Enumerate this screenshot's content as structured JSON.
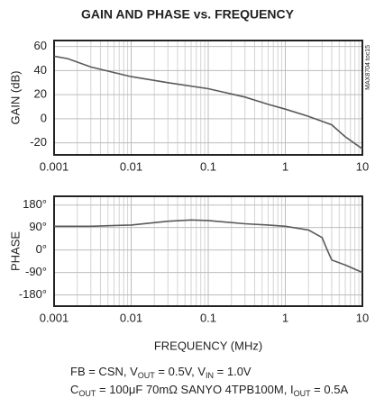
{
  "title": "GAIN AND PHASE vs. FREQUENCY",
  "side_label": "MAX8704 toc15",
  "notes": [
    [
      {
        "text": "FB = CSN, V"
      },
      {
        "sub": "OUT"
      },
      {
        "text": " = 0.5V, V"
      },
      {
        "sub": "IN"
      },
      {
        "text": " = 1.0V"
      }
    ],
    [
      {
        "text": "C"
      },
      {
        "sub": "OUT"
      },
      {
        "text": " = 100μF 70mΩ SANYO 4TPB100M, I"
      },
      {
        "sub": "OUT"
      },
      {
        "text": " = 0.5A"
      }
    ]
  ],
  "chart_data": [
    {
      "type": "line",
      "ylabel": "GAIN (dB)",
      "log_x": true,
      "grid": true,
      "color": "#5a5a5a",
      "xlim": [
        0.001,
        10
      ],
      "xticks": [
        0.001,
        0.01,
        0.1,
        1,
        10
      ],
      "ylim": [
        -30,
        65
      ],
      "yticks": [
        60,
        40,
        20,
        0,
        -20
      ],
      "x": [
        0.001,
        0.0015,
        0.003,
        0.01,
        0.03,
        0.1,
        0.3,
        0.6,
        1,
        2,
        4,
        6,
        10
      ],
      "values": [
        52,
        50,
        43,
        35,
        30,
        25,
        18,
        12,
        8,
        2,
        -5,
        -15,
        -25
      ]
    },
    {
      "type": "line",
      "ylabel": "PHASE",
      "xlabel": "FREQUENCY (MHz)",
      "log_x": true,
      "grid": true,
      "color": "#5a5a5a",
      "xlim": [
        0.001,
        10
      ],
      "xticks": [
        0.001,
        0.01,
        0.1,
        1,
        10
      ],
      "ylim": [
        -225,
        215
      ],
      "yticks": [
        {
          "value": 180,
          "label": "180°"
        },
        {
          "value": 90,
          "label": "90°"
        },
        {
          "value": 0,
          "label": "0°"
        },
        {
          "value": -90,
          "label": "-90°"
        },
        {
          "value": -180,
          "label": "-180°"
        }
      ],
      "x": [
        0.001,
        0.003,
        0.01,
        0.03,
        0.06,
        0.1,
        0.3,
        0.6,
        1,
        2,
        3,
        3.5,
        4,
        6,
        10
      ],
      "values": [
        95,
        95,
        100,
        115,
        120,
        118,
        105,
        100,
        95,
        80,
        50,
        0,
        -40,
        -60,
        -90
      ]
    }
  ]
}
